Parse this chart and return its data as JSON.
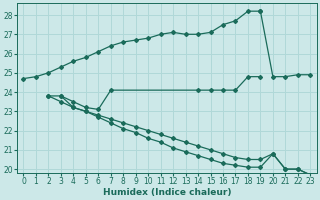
{
  "xlabel": "Humidex (Indice chaleur)",
  "bg_color": "#cce8e8",
  "grid_color": "#b0d8d8",
  "line_color": "#1a6b5a",
  "xlim": [
    -0.5,
    23.5
  ],
  "ylim": [
    19.8,
    28.6
  ],
  "yticks": [
    20,
    21,
    22,
    23,
    24,
    25,
    26,
    27,
    28
  ],
  "xticks": [
    0,
    1,
    2,
    3,
    4,
    5,
    6,
    7,
    8,
    9,
    10,
    11,
    12,
    13,
    14,
    15,
    16,
    17,
    18,
    19,
    20,
    21,
    22,
    23
  ],
  "line1_x": [
    0,
    1,
    2,
    3,
    4,
    5,
    6,
    7,
    8,
    9,
    10,
    11,
    12,
    13,
    14,
    15,
    16,
    17,
    18,
    19
  ],
  "line1_y": [
    24.7,
    24.8,
    25.0,
    25.3,
    25.6,
    25.8,
    26.1,
    26.4,
    26.6,
    26.7,
    26.8,
    27.0,
    27.1,
    27.0,
    27.0,
    27.1,
    27.5,
    27.7,
    28.2,
    28.2
  ],
  "line2_x": [
    2,
    3,
    4,
    5,
    6,
    7,
    14,
    15,
    16,
    17,
    18,
    19
  ],
  "line2_y": [
    23.8,
    23.8,
    23.5,
    23.2,
    23.1,
    24.1,
    24.1,
    24.1,
    24.1,
    24.1,
    24.8,
    24.8
  ],
  "line3_x": [
    19,
    20,
    21,
    22,
    23
  ],
  "line3_y": [
    28.2,
    24.8,
    24.8,
    24.9,
    24.9
  ],
  "line4_x": [
    2,
    3,
    4,
    5,
    6,
    7,
    8,
    9,
    10,
    11,
    12,
    13,
    14,
    15,
    16,
    17,
    18,
    19,
    20,
    21,
    22,
    23
  ],
  "line4_y": [
    23.8,
    23.5,
    23.2,
    23.0,
    22.8,
    22.6,
    22.4,
    22.2,
    22.0,
    21.8,
    21.6,
    21.4,
    21.2,
    21.0,
    20.8,
    20.6,
    20.5,
    20.5,
    20.8,
    20.0,
    20.0,
    19.7
  ],
  "line5_x": [
    3,
    4,
    5,
    6,
    7,
    8,
    9,
    10,
    11,
    12,
    13,
    14,
    15,
    16,
    17,
    18,
    19,
    20,
    21,
    22,
    23
  ],
  "line5_y": [
    23.8,
    23.2,
    23.0,
    22.7,
    22.4,
    22.1,
    21.9,
    21.6,
    21.4,
    21.1,
    20.9,
    20.7,
    20.5,
    20.3,
    20.2,
    20.1,
    20.1,
    20.8,
    20.0,
    20.0,
    19.7
  ]
}
